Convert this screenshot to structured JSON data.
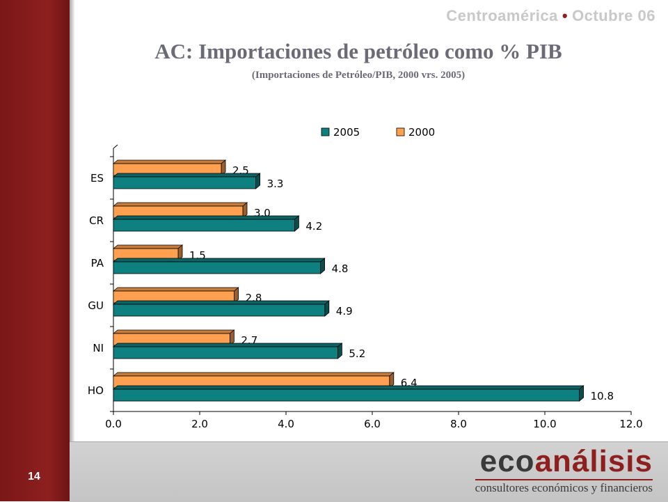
{
  "slide": {
    "page_number": "14",
    "header_left": "Centroamérica",
    "header_bullet": "•",
    "header_right": "Octubre 06",
    "title": "AC: Importaciones de petróleo como % PIB",
    "subtitle": "(Importaciones de Petróleo/PIB, 2000 vrs. 2005)"
  },
  "logo": {
    "word_eco": "eco",
    "word_analisis": "análisis",
    "tagline": "consultores económicos y financieros"
  },
  "colors": {
    "sidebar": "#8e1f1f",
    "series_2005": "#0f8080",
    "series_2000": "#ff9f50"
  },
  "chart_data": {
    "type": "bar",
    "orientation": "horizontal",
    "three_d": true,
    "categories": [
      "ES",
      "CR",
      "PA",
      "GU",
      "NI",
      "HO"
    ],
    "series": [
      {
        "name": "2005",
        "color": "#0f8080",
        "values": [
          3.3,
          4.2,
          4.8,
          4.9,
          5.2,
          10.8
        ],
        "labels": [
          "3.3",
          "4.2",
          "4.8",
          "4.9",
          "5.2",
          "10.8"
        ]
      },
      {
        "name": "2000",
        "color": "#ff9f50",
        "values": [
          2.5,
          3.0,
          1.5,
          2.8,
          2.7,
          6.4
        ],
        "labels": [
          "2.5",
          "3.0",
          "1.5",
          "2.8",
          "2.7",
          "6.4"
        ]
      }
    ],
    "legend_order": [
      "2005",
      "2000"
    ],
    "legend_position": "top",
    "xlim": [
      0,
      12
    ],
    "x_ticks": [
      "0.0",
      "2.0",
      "4.0",
      "6.0",
      "8.0",
      "10.0",
      "12.0"
    ],
    "grid": false
  }
}
